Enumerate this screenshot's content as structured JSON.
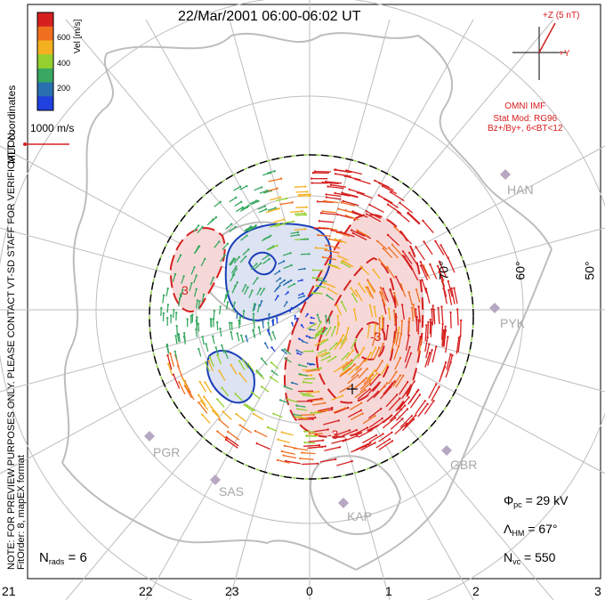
{
  "title": "22/Mar/2001 06:00-06:02 UT",
  "note_line1": "NOTE: FOR PREVIEW PURPOSES ONLY. PLEASE CONTACT VT-SD STAFF FOR VERIFICATION.",
  "note_line2": "FitOrder: 8, mapEX format",
  "coord_label": "MLT coordinates",
  "colorbar": {
    "label": "Vel [m/s]",
    "ticks": [
      "600",
      "400",
      "200"
    ],
    "colors": [
      "#d62020",
      "#f07020",
      "#f3b020",
      "#93d030",
      "#38a860",
      "#2870b0",
      "#2040e0"
    ]
  },
  "reference_vector": "1000 m/s",
  "imf": {
    "z_label": "+Z (5 nT)",
    "y_label": "+Y",
    "source": "OMNI IMF",
    "model_line1": "Stat Mod: RG96",
    "model_line2": "Bz+/By+, 6<BT<12"
  },
  "stats": {
    "phi_pc_symbol": "Φ",
    "phi_pc_sub": "pc",
    "phi_pc_value": "= 29 kV",
    "lambda_hm_symbol": "Λ",
    "lambda_hm_sub": "HM",
    "lambda_hm_value": "= 67°",
    "n_vc_symbol": "N",
    "n_vc_sub": "vc",
    "n_vc_value": "= 550",
    "n_rads_symbol": "N",
    "n_rads_sub": "rads",
    "n_rads_value": "= 6"
  },
  "mlt_ticks": [
    "21",
    "22",
    "23",
    "0",
    "1",
    "2",
    "3"
  ],
  "latitude_labels": [
    "70°",
    "60°",
    "50°"
  ],
  "stations": [
    "HAN",
    "PYK",
    "PGR",
    "SAS",
    "KAP",
    "GBR"
  ],
  "contour_labels": [
    "-3",
    "3",
    "-3"
  ],
  "colors": {
    "negative_contour": "#1a3fb8",
    "positive_contour": "#d42020",
    "negative_fill": "#dde3f2",
    "positive_fill": "#f7d8d8",
    "grid": "#bdbdbd",
    "coast": "#bdbdbd",
    "station": "#a8a8a8",
    "boundary_green": "#8fd048"
  }
}
